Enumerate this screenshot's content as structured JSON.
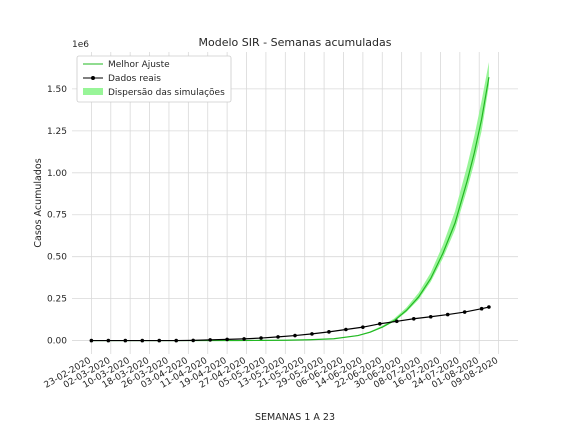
{
  "chart_data": {
    "type": "line",
    "title": "Modelo SIR - Semanas acumuladas",
    "xlabel": "SEMANAS 1 A 23",
    "ylabel": "Casos Acumulados",
    "y_offset_label": "1e6",
    "ylim": [
      -0.08,
      1.72
    ],
    "xlim": [
      -8,
      176
    ],
    "y_ticks": [
      0.0,
      0.25,
      0.5,
      0.75,
      1.0,
      1.25,
      1.5
    ],
    "y_tick_labels": [
      "0.00",
      "0.25",
      "0.50",
      "0.75",
      "1.00",
      "1.25",
      "1.50"
    ],
    "x_ticks": [
      0,
      8,
      16,
      24,
      32,
      40,
      48,
      56,
      64,
      72,
      80,
      88,
      96,
      104,
      112,
      120,
      128,
      136,
      144,
      152,
      160,
      168
    ],
    "x_tick_labels": [
      "23-02-2020",
      "02-03-2020",
      "10-03-2020",
      "18-03-2020",
      "26-03-2020",
      "03-04-2020",
      "11-04-2020",
      "19-04-2020",
      "27-04-2020",
      "05-05-2020",
      "13-05-2020",
      "21-05-2020",
      "29-05-2020",
      "06-06-2020",
      "14-06-2020",
      "22-06-2020",
      "30-06-2020",
      "08-07-2020",
      "16-07-2020",
      "24-07-2020",
      "01-08-2020",
      "09-08-2020"
    ],
    "grid": true,
    "legend_position": "top-left",
    "colors": {
      "fit": "#22b822",
      "real": "#000000",
      "band": "#98f598"
    },
    "series": [
      {
        "name": "Melhor Ajuste",
        "kind": "line",
        "x": [
          0,
          10,
          20,
          30,
          40,
          50,
          60,
          70,
          80,
          90,
          100,
          110,
          115,
          120,
          125,
          130,
          135,
          140,
          145,
          150,
          155,
          158,
          161,
          164
        ],
        "y": [
          0.0,
          0.0,
          0.0,
          0.0,
          0.0,
          0.0,
          0.0,
          0.001,
          0.002,
          0.005,
          0.011,
          0.03,
          0.05,
          0.08,
          0.12,
          0.18,
          0.26,
          0.37,
          0.52,
          0.7,
          0.95,
          1.12,
          1.32,
          1.57
        ]
      },
      {
        "name": "Dados reais",
        "kind": "line-marker",
        "x": [
          0,
          7,
          14,
          21,
          28,
          35,
          42,
          49,
          56,
          63,
          70,
          77,
          84,
          91,
          98,
          105,
          112,
          119,
          126,
          133,
          140,
          147,
          154,
          161,
          164
        ],
        "y": [
          0.0,
          0.0,
          0.0,
          0.0,
          0.0,
          0.0,
          0.001,
          0.004,
          0.007,
          0.01,
          0.015,
          0.022,
          0.03,
          0.04,
          0.052,
          0.066,
          0.08,
          0.1,
          0.115,
          0.13,
          0.142,
          0.155,
          0.17,
          0.19,
          0.2
        ]
      },
      {
        "name": "Dispersão das simulações",
        "kind": "band",
        "x": [
          100,
          110,
          115,
          120,
          125,
          130,
          135,
          140,
          145,
          150,
          155,
          158,
          161,
          164
        ],
        "y_low": [
          0.011,
          0.028,
          0.047,
          0.076,
          0.114,
          0.17,
          0.245,
          0.35,
          0.49,
          0.66,
          0.9,
          1.06,
          1.25,
          1.52
        ],
        "y_high": [
          0.012,
          0.033,
          0.055,
          0.088,
          0.132,
          0.197,
          0.285,
          0.405,
          0.57,
          0.77,
          1.04,
          1.22,
          1.43,
          1.66
        ]
      }
    ]
  }
}
